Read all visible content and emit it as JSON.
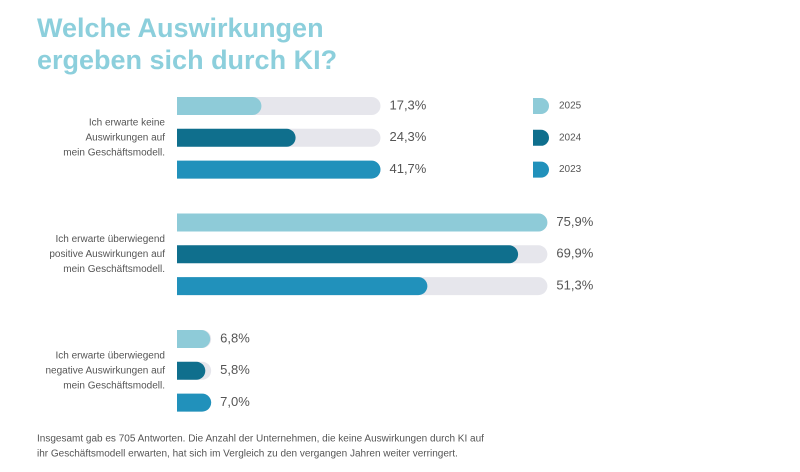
{
  "chart_data": {
    "type": "bar",
    "orientation": "horizontal",
    "title": [
      "Welche Auswirkungen",
      "ergeben sich durch KI?"
    ],
    "categories": [
      [
        "Ich erwarte keine",
        "Auswirkungen auf",
        "mein Geschäftsmodell."
      ],
      [
        "Ich erwarte überwiegend",
        "positive Auswirkungen auf",
        "mein Geschäftsmodell."
      ],
      [
        "Ich erwarte überwiegend",
        "negative Auswirkungen auf",
        "mein Geschäftsmodell."
      ]
    ],
    "series": [
      {
        "name": "2025",
        "color": "#8ecbd8",
        "values": [
          17.3,
          75.9,
          6.8
        ],
        "value_labels": [
          "17,3%",
          "75,9%",
          "6,8%"
        ]
      },
      {
        "name": "2024",
        "color": "#0f6f8d",
        "values": [
          24.3,
          69.9,
          5.8
        ],
        "value_labels": [
          "24,3%",
          "69,9%",
          "5,8%"
        ]
      },
      {
        "name": "2023",
        "color": "#2191bb",
        "values": [
          41.7,
          51.3,
          7.0
        ],
        "value_labels": [
          "41,7%",
          "51,3%",
          "7,0%"
        ]
      }
    ],
    "track_color": "#e6e6ec",
    "footnote": [
      "Insgesamt gab es 705 Antworten. Die Anzahl der Unternehmen, die keine Auswirkungen durch KI auf",
      "ihr Geschäftsmodell erwarten, hat sich im Vergleich zu den vergangen Jahren weiter verringert."
    ]
  }
}
